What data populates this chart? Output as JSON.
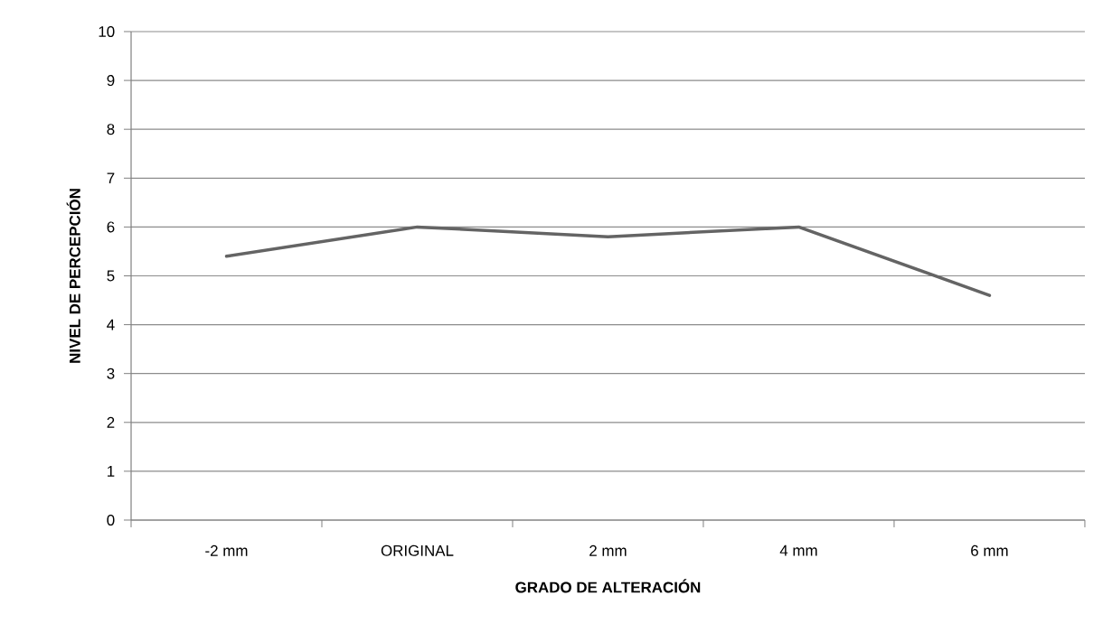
{
  "chart_data": {
    "type": "line",
    "xlabel": "GRADO DE ALTERACIÓN",
    "ylabel": "NIVEL DE PERCEPCIÓN",
    "categories": [
      "-2 mm",
      "ORIGINAL",
      "2 mm",
      "4 mm",
      "6 mm"
    ],
    "series": [
      {
        "color": "#646464",
        "values": [
          5.4,
          6.0,
          5.8,
          6.0,
          4.6
        ]
      }
    ],
    "ylim": [
      0,
      10
    ],
    "yticks": [
      0,
      1,
      2,
      3,
      4,
      5,
      6,
      7,
      8,
      9,
      10
    ],
    "grid": "y",
    "marker": "none",
    "line_style": "solid"
  }
}
